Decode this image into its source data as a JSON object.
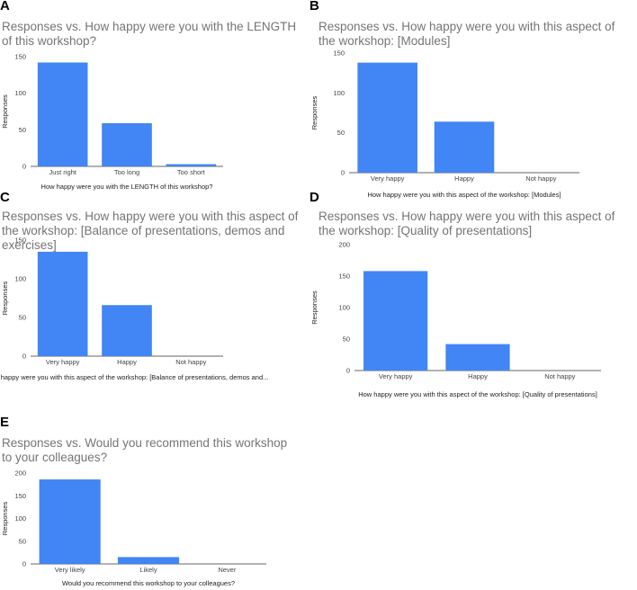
{
  "chart_data": [
    {
      "panel": "A",
      "type": "bar",
      "title": "Responses vs. How happy were you with the LENGTH of this workshop?",
      "xlabel": "How happy were you with the LENGTH of this workshop?",
      "ylabel": "Responses",
      "categories": [
        "Just right",
        "Too long",
        "Too short"
      ],
      "values": [
        142,
        59,
        3
      ],
      "ylim": [
        0,
        150
      ],
      "yticks": [
        0,
        50,
        100,
        150
      ],
      "color": "#4285f4"
    },
    {
      "panel": "B",
      "type": "bar",
      "title": "Responses vs. How happy were you with this aspect of the workshop: [Modules]",
      "xlabel": "How happy were you with this aspect of the workshop: [Modules]",
      "ylabel": "Responses",
      "categories": [
        "Very happy",
        "Happy",
        "Not happy"
      ],
      "values": [
        138,
        64,
        0
      ],
      "ylim": [
        0,
        150
      ],
      "yticks": [
        0,
        50,
        100,
        150
      ],
      "color": "#4285f4"
    },
    {
      "panel": "C",
      "type": "bar",
      "title": "Responses vs. How happy were you with this aspect of the workshop: [Balance of presentations, demos and exercises]",
      "xlabel": "How happy were you with this aspect of the workshop: [Balance of presentations, demos and...",
      "ylabel": "Responses",
      "categories": [
        "Very happy",
        "Happy",
        "Not happy"
      ],
      "values": [
        135,
        66,
        0
      ],
      "ylim": [
        0,
        150
      ],
      "yticks": [
        0,
        50,
        100,
        150
      ],
      "color": "#4285f4"
    },
    {
      "panel": "D",
      "type": "bar",
      "title": "Responses vs. How happy were you with this aspect of the workshop: [Quality of presentations]",
      "xlabel": "How happy were you with this aspect of the workshop: [Quality of presentations]",
      "ylabel": "Responses",
      "categories": [
        "Very happy",
        "Happy",
        "Not happy"
      ],
      "values": [
        158,
        42,
        0
      ],
      "ylim": [
        0,
        200
      ],
      "yticks": [
        0,
        50,
        100,
        150,
        200
      ],
      "color": "#4285f4"
    },
    {
      "panel": "E",
      "type": "bar",
      "title": "Responses vs. Would you recommend this workshop to your colleagues?",
      "xlabel": "Would you recommend this workshop to your colleagues?",
      "ylabel": "Responses",
      "categories": [
        "Very likely",
        "Likely",
        "Never"
      ],
      "values": [
        186,
        15,
        0
      ],
      "ylim": [
        0,
        200
      ],
      "yticks": [
        0,
        50,
        100,
        150,
        200
      ],
      "color": "#4285f4"
    }
  ]
}
